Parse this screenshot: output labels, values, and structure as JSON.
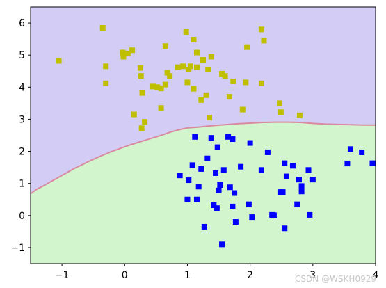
{
  "chart_data": {
    "type": "scatter",
    "title": "",
    "xlabel": "",
    "ylabel": "",
    "xlim": [
      -1.5,
      4
    ],
    "ylim": [
      -1.5,
      6.5
    ],
    "xticks": [
      -1,
      0,
      1,
      2,
      3,
      4
    ],
    "yticks": [
      -1,
      0,
      1,
      2,
      3,
      4,
      5,
      6
    ],
    "xtick_labels": [
      "−1",
      "0",
      "1",
      "2",
      "3",
      "4"
    ],
    "ytick_labels": [
      "−1",
      "0",
      "1",
      "2",
      "3",
      "4",
      "5",
      "6"
    ],
    "grid": false,
    "legend": "none",
    "regions": [
      {
        "class": "upper",
        "color": "#d3cdf6"
      },
      {
        "class": "lower",
        "color": "#d3f5cd"
      }
    ],
    "decision_boundary": {
      "color": "#d98aa0",
      "x": [
        -1.5,
        -1.4,
        -1.3,
        -1.2,
        -1.1,
        -1.0,
        -0.9,
        -0.8,
        -0.7,
        -0.6,
        -0.5,
        -0.4,
        -0.3,
        -0.2,
        -0.1,
        0.0,
        0.1,
        0.2,
        0.3,
        0.4,
        0.5,
        0.6,
        0.7,
        0.8,
        0.9,
        1.0,
        1.2,
        1.4,
        1.6,
        1.8,
        2.0,
        2.2,
        2.4,
        2.6,
        2.8,
        3.0,
        3.2,
        3.4,
        3.6,
        3.8,
        4.0
      ],
      "y": [
        0.68,
        0.82,
        0.92,
        1.03,
        1.14,
        1.25,
        1.36,
        1.47,
        1.56,
        1.66,
        1.75,
        1.84,
        1.92,
        2.0,
        2.07,
        2.14,
        2.21,
        2.27,
        2.33,
        2.39,
        2.45,
        2.51,
        2.58,
        2.64,
        2.69,
        2.73,
        2.76,
        2.8,
        2.83,
        2.86,
        2.88,
        2.9,
        2.91,
        2.91,
        2.9,
        2.87,
        2.85,
        2.84,
        2.83,
        2.82,
        2.82
      ]
    },
    "series": [
      {
        "color": "#bfbf00",
        "marker": "square",
        "points": [
          [
            -0.35,
            5.85
          ],
          [
            -1.05,
            4.82
          ],
          [
            -0.3,
            4.65
          ],
          [
            -0.3,
            4.12
          ],
          [
            -0.03,
            5.08
          ],
          [
            -0.02,
            4.95
          ],
          [
            0.05,
            5.05
          ],
          [
            0.12,
            5.15
          ],
          [
            0.15,
            3.15
          ],
          [
            0.25,
            4.6
          ],
          [
            0.26,
            4.35
          ],
          [
            0.28,
            3.82
          ],
          [
            0.27,
            2.72
          ],
          [
            0.32,
            2.92
          ],
          [
            0.45,
            4.02
          ],
          [
            0.52,
            4.0
          ],
          [
            0.58,
            3.96
          ],
          [
            0.58,
            3.35
          ],
          [
            0.65,
            5.28
          ],
          [
            0.65,
            4.08
          ],
          [
            0.68,
            4.45
          ],
          [
            0.72,
            4.35
          ],
          [
            0.85,
            4.62
          ],
          [
            0.93,
            4.65
          ],
          [
            0.98,
            5.72
          ],
          [
            1.0,
            4.15
          ],
          [
            1.02,
            4.55
          ],
          [
            1.05,
            4.65
          ],
          [
            1.1,
            3.95
          ],
          [
            1.1,
            5.48
          ],
          [
            1.15,
            5.08
          ],
          [
            1.15,
            4.62
          ],
          [
            1.22,
            3.6
          ],
          [
            1.25,
            4.85
          ],
          [
            1.3,
            3.75
          ],
          [
            1.33,
            4.55
          ],
          [
            1.35,
            3.05
          ],
          [
            1.38,
            4.95
          ],
          [
            1.55,
            4.42
          ],
          [
            1.6,
            4.35
          ],
          [
            1.67,
            3.7
          ],
          [
            1.73,
            4.18
          ],
          [
            1.93,
            4.15
          ],
          [
            1.95,
            5.25
          ],
          [
            1.88,
            3.3
          ],
          [
            2.18,
            5.8
          ],
          [
            2.18,
            4.12
          ],
          [
            2.22,
            5.45
          ],
          [
            2.47,
            3.5
          ],
          [
            2.49,
            3.22
          ],
          [
            2.79,
            3.12
          ]
        ]
      },
      {
        "color": "#0000ff",
        "marker": "square",
        "points": [
          [
            0.88,
            1.25
          ],
          [
            1.0,
            0.5
          ],
          [
            1.02,
            1.1
          ],
          [
            1.08,
            1.57
          ],
          [
            1.12,
            2.45
          ],
          [
            1.15,
            0.5
          ],
          [
            1.18,
            0.9
          ],
          [
            1.22,
            1.45
          ],
          [
            1.27,
            -0.35
          ],
          [
            1.32,
            1.78
          ],
          [
            1.38,
            2.42
          ],
          [
            1.42,
            0.32
          ],
          [
            1.45,
            1.32
          ],
          [
            1.47,
            0.23
          ],
          [
            1.48,
            2.13
          ],
          [
            1.5,
            0.78
          ],
          [
            1.52,
            0.95
          ],
          [
            1.55,
            -0.9
          ],
          [
            1.58,
            1.42
          ],
          [
            1.65,
            2.45
          ],
          [
            1.68,
            0.88
          ],
          [
            1.72,
            0.28
          ],
          [
            1.72,
            2.38
          ],
          [
            1.75,
            0.7
          ],
          [
            1.77,
            -0.2
          ],
          [
            1.85,
            1.52
          ],
          [
            1.98,
            0.35
          ],
          [
            2.0,
            2.26
          ],
          [
            2.03,
            -0.05
          ],
          [
            2.18,
            1.42
          ],
          [
            2.28,
            1.97
          ],
          [
            2.35,
            0.02
          ],
          [
            2.38,
            0.01
          ],
          [
            2.48,
            0.73
          ],
          [
            2.52,
            0.73
          ],
          [
            2.55,
            1.63
          ],
          [
            2.55,
            -0.4
          ],
          [
            2.58,
            1.22
          ],
          [
            2.68,
            1.55
          ],
          [
            2.75,
            0.35
          ],
          [
            2.78,
            1.12
          ],
          [
            2.82,
            0.92
          ],
          [
            2.82,
            0.75
          ],
          [
            2.93,
            1.42
          ],
          [
            2.95,
            0.02
          ],
          [
            3.0,
            1.12
          ],
          [
            3.55,
            1.62
          ],
          [
            3.6,
            2.07
          ],
          [
            3.78,
            1.97
          ],
          [
            3.95,
            1.63
          ]
        ]
      }
    ]
  },
  "watermark": "CSDN @WSKH0929"
}
